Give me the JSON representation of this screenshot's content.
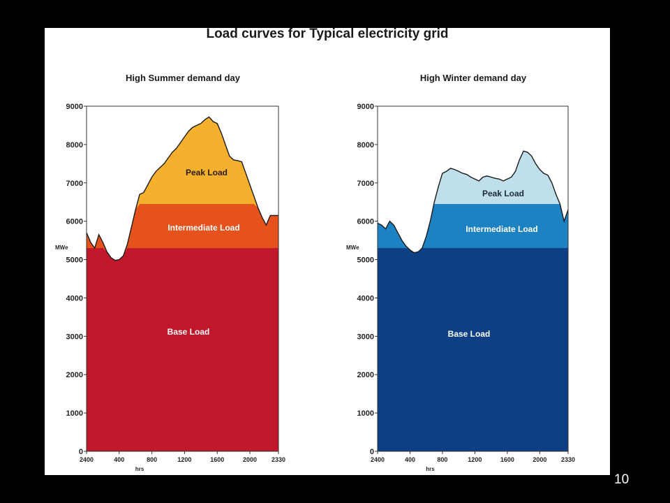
{
  "slide": {
    "title": "Load curves for Typical electricity grid",
    "page_number": "10"
  },
  "chart_data": [
    {
      "type": "area",
      "title": "High Summer demand day",
      "ylabel": "MWe",
      "xlabel": "hrs",
      "ylim": [
        0,
        9000
      ],
      "yticks": [
        "0",
        "1000",
        "2000",
        "3000",
        "4000",
        "5000",
        "6000",
        "7000",
        "8000",
        "9000"
      ],
      "xticks": [
        "2400",
        "400",
        "800",
        "1200",
        "1600",
        "2000",
        "2330"
      ],
      "grid": false,
      "base_level": 5300,
      "intermediate_level": 6450,
      "x": [
        0,
        0.5,
        1,
        1.5,
        2,
        2.5,
        3,
        3.5,
        4,
        4.5,
        5,
        5.5,
        6,
        6.5,
        7,
        7.5,
        8,
        8.5,
        9,
        9.5,
        10,
        10.5,
        11,
        11.5,
        12,
        12.5,
        13,
        13.5,
        14,
        14.5,
        15,
        15.5,
        16,
        16.5,
        17,
        17.5,
        18,
        18.5,
        19,
        19.5,
        20,
        20.5,
        21,
        21.5,
        22,
        22.5,
        23,
        23.5
      ],
      "demand": [
        5700,
        5450,
        5300,
        5650,
        5450,
        5200,
        5050,
        4980,
        5000,
        5100,
        5400,
        5850,
        6300,
        6700,
        6750,
        6950,
        7150,
        7300,
        7400,
        7500,
        7650,
        7800,
        7900,
        8050,
        8200,
        8350,
        8450,
        8500,
        8550,
        8650,
        8720,
        8600,
        8550,
        8300,
        8000,
        7700,
        7600,
        7580,
        7550,
        7250,
        6950,
        6650,
        6350,
        6100,
        5900,
        6150,
        6150,
        6150
      ],
      "series": [
        {
          "name": "Peak Load",
          "color": "#f5b02e"
        },
        {
          "name": "Intermediate Load",
          "color": "#e5521c"
        },
        {
          "name": "Base Load",
          "color": "#c1172b"
        }
      ]
    },
    {
      "type": "area",
      "title": "High Winter demand day",
      "ylabel": "MWe",
      "xlabel": "hrs",
      "ylim": [
        0,
        9000
      ],
      "yticks": [
        "0",
        "1000",
        "2000",
        "3000",
        "4000",
        "5000",
        "6000",
        "7000",
        "8000",
        "9000"
      ],
      "xticks": [
        "2400",
        "400",
        "800",
        "1200",
        "1600",
        "2000",
        "2330"
      ],
      "grid": false,
      "base_level": 5300,
      "intermediate_level": 6450,
      "x": [
        0,
        0.5,
        1,
        1.5,
        2,
        2.5,
        3,
        3.5,
        4,
        4.5,
        5,
        5.5,
        6,
        6.5,
        7,
        7.5,
        8,
        8.5,
        9,
        9.5,
        10,
        10.5,
        11,
        11.5,
        12,
        12.5,
        13,
        13.5,
        14,
        14.5,
        15,
        15.5,
        16,
        16.5,
        17,
        17.5,
        18,
        18.5,
        19,
        19.5,
        20,
        20.5,
        21,
        21.5,
        22,
        22.5,
        23,
        23.5
      ],
      "demand": [
        5950,
        5900,
        5800,
        6000,
        5900,
        5700,
        5500,
        5350,
        5250,
        5180,
        5200,
        5300,
        5600,
        6000,
        6500,
        6900,
        7250,
        7300,
        7380,
        7350,
        7300,
        7250,
        7220,
        7150,
        7100,
        7050,
        7150,
        7180,
        7150,
        7120,
        7100,
        7050,
        7100,
        7150,
        7300,
        7600,
        7830,
        7800,
        7700,
        7500,
        7350,
        7250,
        7200,
        7000,
        6700,
        6450,
        6000,
        6300
      ],
      "series": [
        {
          "name": "Peak Load",
          "color": "#bfe0ea"
        },
        {
          "name": "Intermediate Load",
          "color": "#1d82c2"
        },
        {
          "name": "Base Load",
          "color": "#0c3f83"
        }
      ]
    }
  ]
}
